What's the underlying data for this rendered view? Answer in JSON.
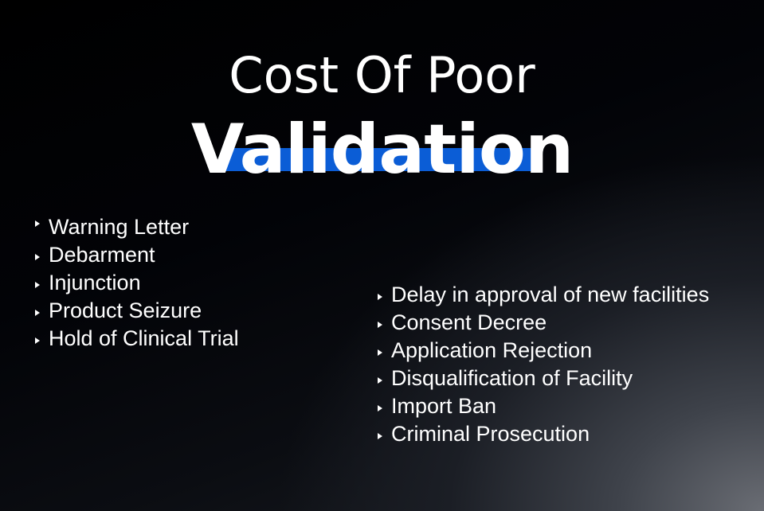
{
  "title": {
    "line1": "Cost Of Poor",
    "line2": "Validation",
    "highlight_color": "#0b5dd6"
  },
  "left_list": {
    "icon": "triangle-bullet-icon",
    "items": [
      "Warning Letter",
      "Debarment",
      "Injunction",
      "Product Seizure",
      "Hold of Clinical Trial"
    ]
  },
  "right_list": {
    "icon": "triangle-bullet-icon",
    "items": [
      "Delay in approval of new facilities",
      "Consent Decree",
      "Application Rejection",
      "Disqualification of Facility",
      "Import Ban",
      "Criminal Prosecution"
    ]
  }
}
